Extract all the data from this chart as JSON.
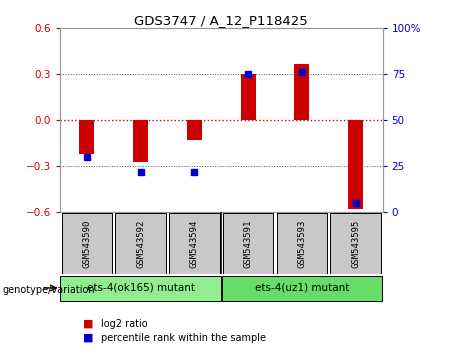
{
  "title": "GDS3747 / A_12_P118425",
  "samples": [
    "GSM543590",
    "GSM543592",
    "GSM543594",
    "GSM543591",
    "GSM543593",
    "GSM543595"
  ],
  "log2_ratio": [
    -0.22,
    -0.27,
    -0.13,
    0.3,
    0.37,
    -0.58
  ],
  "percentile_rank": [
    30,
    22,
    22,
    75,
    76,
    5
  ],
  "groups": [
    {
      "label": "ets-4(ok165) mutant",
      "samples": [
        0,
        1,
        2
      ],
      "color": "#90EE90"
    },
    {
      "label": "ets-4(uz1) mutant",
      "samples": [
        3,
        4,
        5
      ],
      "color": "#66DD66"
    }
  ],
  "ylim_left": [
    -0.6,
    0.6
  ],
  "ylim_right": [
    0,
    100
  ],
  "yticks_left": [
    -0.6,
    -0.3,
    0,
    0.3,
    0.6
  ],
  "yticks_right": [
    0,
    25,
    50,
    75,
    100
  ],
  "red_color": "#cc0000",
  "blue_color": "#0000cc",
  "dotted_line_color": "#555555",
  "zero_line_color": "#cc0000",
  "bg_color": "#ffffff",
  "group_bg": "#c8c8c8",
  "legend_red_label": "log2 ratio",
  "legend_blue_label": "percentile rank within the sample",
  "genotype_label": "genotype/variation"
}
